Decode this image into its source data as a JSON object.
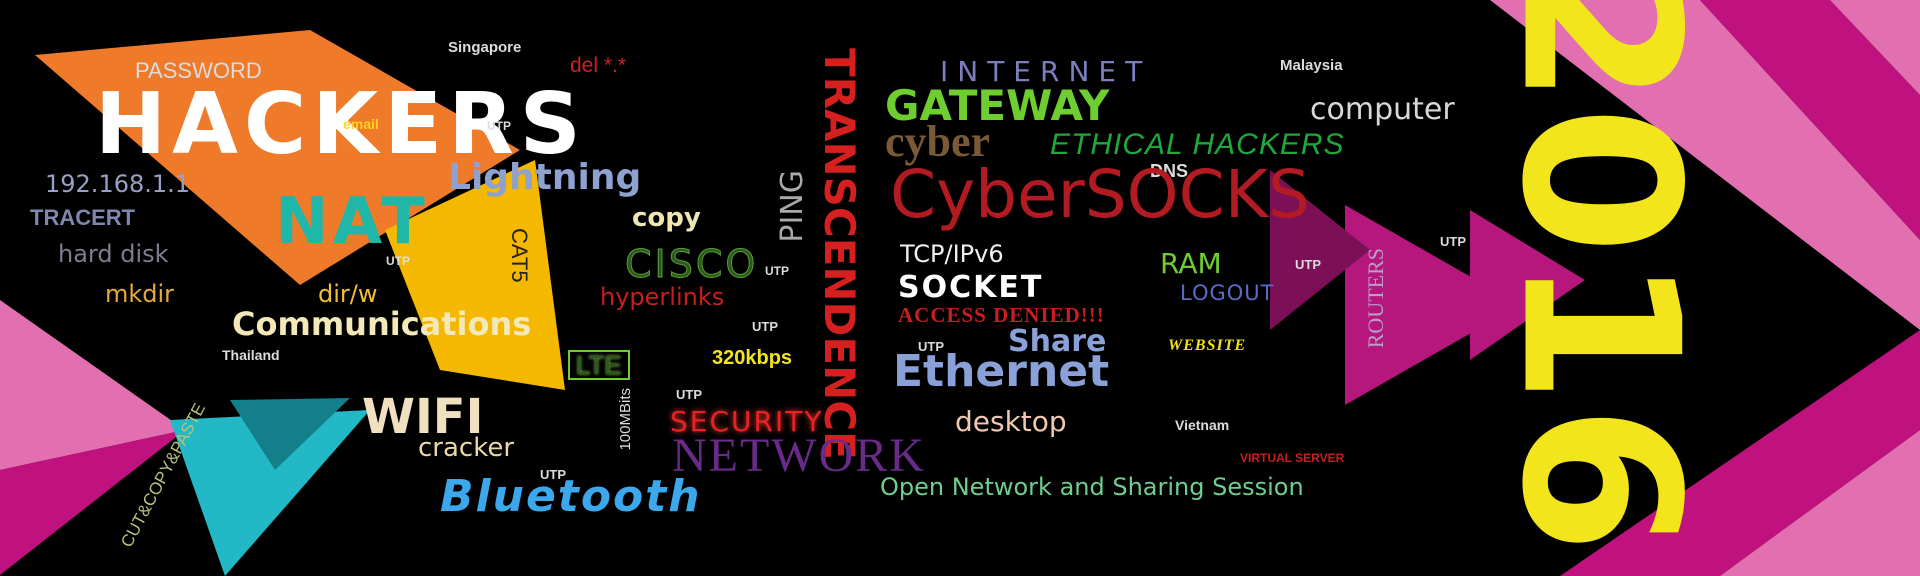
{
  "colors": {
    "background": "#000000",
    "magenta": "#c0127e",
    "pink": "#e270b0",
    "orange": "#ee7a2a",
    "yellow": "#f5b800",
    "teal": "#23b8c6",
    "year_yellow": "#f2e51c"
  },
  "words": {
    "password": "PASSWORD",
    "singapore": "Singapore",
    "del": "del *.*",
    "internet": "INTERNET",
    "malaysia": "Malaysia",
    "hackers": "HACKERS",
    "email": "email",
    "utp": "UTP",
    "gateway": "GATEWAY",
    "computer": "computer",
    "transcendence": "TRANSCENDENCE",
    "cyber": "cyber",
    "ethical_hackers": "ETHICAL HACKERS",
    "year": "2016",
    "ip": "192.168.1.1",
    "lightning": "Lightning",
    "dns": "DNS",
    "cybersocks": "CyberSOCKS",
    "ping": "PING",
    "nat": "NAT",
    "tracert": "TRACERT",
    "copy": "copy",
    "cat5": "CAT5",
    "hard_disk": "hard disk",
    "cisco": "CISCO",
    "tcp": "TCP/IPv6",
    "ram": "RAM",
    "routers": "ROUTERS",
    "mkdir": "mkdir",
    "dirw": "dir/w",
    "hyperlinks": "hyperlinks",
    "socket": "SOCKET",
    "logout": "LOGOUT",
    "communications": "Communications",
    "access_denied": "ACCESS DENIED!!!",
    "thailand": "Thailand",
    "share": "Share",
    "website": "WEBSITE",
    "lte": "LTE",
    "kbps": "320kbps",
    "ethernet": "Ethernet",
    "wifi": "WIFI",
    "mbits": "100MBits",
    "security": "SECURITY",
    "desktop": "desktop",
    "vietnam": "Vietnam",
    "cracker": "cracker",
    "network": "NETWORK",
    "virtual_server": "VIRTUAL SERVER",
    "cut_paste": "CUT&COPY&PASTE",
    "bluetooth": "Bluetooth",
    "open_network": "Open Network and Sharing Session"
  }
}
